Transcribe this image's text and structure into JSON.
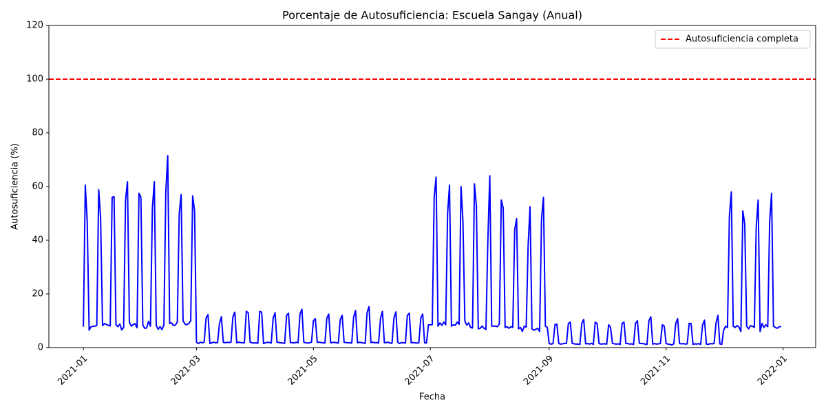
{
  "chart_data": {
    "type": "line",
    "title": "Porcentaje de Autosuficiencia: Escuela Sangay (Anual)",
    "xlabel": "Fecha",
    "ylabel": "Autosuficiencia (%)",
    "xlim": [
      "2020-12-14",
      "2022-01-18"
    ],
    "xticks": [
      {
        "value": "2021-01-01",
        "label": "2021-01"
      },
      {
        "value": "2021-03-01",
        "label": "2021-03"
      },
      {
        "value": "2021-05-01",
        "label": "2021-05"
      },
      {
        "value": "2021-07-01",
        "label": "2021-07"
      },
      {
        "value": "2021-09-01",
        "label": "2021-09"
      },
      {
        "value": "2021-11-01",
        "label": "2021-11"
      },
      {
        "value": "2022-01-01",
        "label": "2022-01"
      }
    ],
    "ylim": [
      0,
      120
    ],
    "yticks": [
      0,
      20,
      40,
      60,
      80,
      100,
      120
    ],
    "legend": "upper right",
    "hlines": [
      {
        "y": 100,
        "name": "Autosuficiencia completa",
        "color": "#ff0000"
      }
    ],
    "x": [
      "2021-01-01",
      "2021-01-02",
      "2021-01-03",
      "2021-01-04",
      "2021-01-05",
      "2021-01-06",
      "2021-01-07",
      "2021-01-08",
      "2021-01-09",
      "2021-01-10",
      "2021-01-11",
      "2021-01-12",
      "2021-01-13",
      "2021-01-14",
      "2021-01-15",
      "2021-01-16",
      "2021-01-17",
      "2021-01-18",
      "2021-01-19",
      "2021-01-20",
      "2021-01-21",
      "2021-01-22",
      "2021-01-23",
      "2021-01-24",
      "2021-01-25",
      "2021-01-26",
      "2021-01-27",
      "2021-01-28",
      "2021-01-29",
      "2021-01-30",
      "2021-01-31",
      "2021-02-01",
      "2021-02-02",
      "2021-02-03",
      "2021-02-04",
      "2021-02-05",
      "2021-02-06",
      "2021-02-07",
      "2021-02-08",
      "2021-02-09",
      "2021-02-10",
      "2021-02-11",
      "2021-02-12",
      "2021-02-13",
      "2021-02-14",
      "2021-02-15",
      "2021-02-16",
      "2021-02-17",
      "2021-02-18",
      "2021-02-19",
      "2021-02-20",
      "2021-02-21",
      "2021-02-22",
      "2021-02-23",
      "2021-02-24",
      "2021-02-25",
      "2021-02-26",
      "2021-02-27",
      "2021-02-28",
      "2021-03-01",
      "2021-03-02",
      "2021-03-03",
      "2021-03-04",
      "2021-03-05",
      "2021-03-06",
      "2021-03-07",
      "2021-03-08",
      "2021-03-09",
      "2021-03-10",
      "2021-03-11",
      "2021-03-12",
      "2021-03-13",
      "2021-03-14",
      "2021-03-15",
      "2021-03-16",
      "2021-03-17",
      "2021-03-18",
      "2021-03-19",
      "2021-03-20",
      "2021-03-21",
      "2021-03-22",
      "2021-03-23",
      "2021-03-24",
      "2021-03-25",
      "2021-03-26",
      "2021-03-27",
      "2021-03-28",
      "2021-03-29",
      "2021-03-30",
      "2021-03-31",
      "2021-04-01",
      "2021-04-02",
      "2021-04-03",
      "2021-04-04",
      "2021-04-05",
      "2021-04-06",
      "2021-04-07",
      "2021-04-08",
      "2021-04-09",
      "2021-04-10",
      "2021-04-11",
      "2021-04-12",
      "2021-04-13",
      "2021-04-14",
      "2021-04-15",
      "2021-04-16",
      "2021-04-17",
      "2021-04-18",
      "2021-04-19",
      "2021-04-20",
      "2021-04-21",
      "2021-04-22",
      "2021-04-23",
      "2021-04-24",
      "2021-04-25",
      "2021-04-26",
      "2021-04-27",
      "2021-04-28",
      "2021-04-29",
      "2021-04-30",
      "2021-05-01",
      "2021-05-02",
      "2021-05-03",
      "2021-05-04",
      "2021-05-05",
      "2021-05-06",
      "2021-05-07",
      "2021-05-08",
      "2021-05-09",
      "2021-05-10",
      "2021-05-11",
      "2021-05-12",
      "2021-05-13",
      "2021-05-14",
      "2021-05-15",
      "2021-05-16",
      "2021-05-17",
      "2021-05-18",
      "2021-05-19",
      "2021-05-20",
      "2021-05-21",
      "2021-05-22",
      "2021-05-23",
      "2021-05-24",
      "2021-05-25",
      "2021-05-26",
      "2021-05-27",
      "2021-05-28",
      "2021-05-29",
      "2021-05-30",
      "2021-05-31",
      "2021-06-01",
      "2021-06-02",
      "2021-06-03",
      "2021-06-04",
      "2021-06-05",
      "2021-06-06",
      "2021-06-07",
      "2021-06-08",
      "2021-06-09",
      "2021-06-10",
      "2021-06-11",
      "2021-06-12",
      "2021-06-13",
      "2021-06-14",
      "2021-06-15",
      "2021-06-16",
      "2021-06-17",
      "2021-06-18",
      "2021-06-19",
      "2021-06-20",
      "2021-06-21",
      "2021-06-22",
      "2021-06-23",
      "2021-06-24",
      "2021-06-25",
      "2021-06-26",
      "2021-06-27",
      "2021-06-28",
      "2021-06-29",
      "2021-06-30",
      "2021-07-01",
      "2021-07-02",
      "2021-07-03",
      "2021-07-04",
      "2021-07-05",
      "2021-07-06",
      "2021-07-07",
      "2021-07-08",
      "2021-07-09",
      "2021-07-10",
      "2021-07-11",
      "2021-07-12",
      "2021-07-13",
      "2021-07-14",
      "2021-07-15",
      "2021-07-16",
      "2021-07-17",
      "2021-07-18",
      "2021-07-19",
      "2021-07-20",
      "2021-07-21",
      "2021-07-22",
      "2021-07-23",
      "2021-07-24",
      "2021-07-25",
      "2021-07-26",
      "2021-07-27",
      "2021-07-28",
      "2021-07-29",
      "2021-07-30",
      "2021-07-31",
      "2021-08-01",
      "2021-08-02",
      "2021-08-03",
      "2021-08-04",
      "2021-08-05",
      "2021-08-06",
      "2021-08-07",
      "2021-08-08",
      "2021-08-09",
      "2021-08-10",
      "2021-08-11",
      "2021-08-12",
      "2021-08-13",
      "2021-08-14",
      "2021-08-15",
      "2021-08-16",
      "2021-08-17",
      "2021-08-18",
      "2021-08-19",
      "2021-08-20",
      "2021-08-21",
      "2021-08-22",
      "2021-08-23",
      "2021-08-24",
      "2021-08-25",
      "2021-08-26",
      "2021-08-27",
      "2021-08-28",
      "2021-08-29",
      "2021-08-30",
      "2021-08-31",
      "2021-09-01",
      "2021-09-02",
      "2021-09-03",
      "2021-09-04",
      "2021-09-05",
      "2021-09-06",
      "2021-09-07",
      "2021-09-08",
      "2021-09-09",
      "2021-09-10",
      "2021-09-11",
      "2021-09-12",
      "2021-09-13",
      "2021-09-14",
      "2021-09-15",
      "2021-09-16",
      "2021-09-17",
      "2021-09-18",
      "2021-09-19",
      "2021-09-20",
      "2021-09-21",
      "2021-09-22",
      "2021-09-23",
      "2021-09-24",
      "2021-09-25",
      "2021-09-26",
      "2021-09-27",
      "2021-09-28",
      "2021-09-29",
      "2021-09-30",
      "2021-10-01",
      "2021-10-02",
      "2021-10-03",
      "2021-10-04",
      "2021-10-05",
      "2021-10-06",
      "2021-10-07",
      "2021-10-08",
      "2021-10-09",
      "2021-10-10",
      "2021-10-11",
      "2021-10-12",
      "2021-10-13",
      "2021-10-14",
      "2021-10-15",
      "2021-10-16",
      "2021-10-17",
      "2021-10-18",
      "2021-10-19",
      "2021-10-20",
      "2021-10-21",
      "2021-10-22",
      "2021-10-23",
      "2021-10-24",
      "2021-10-25",
      "2021-10-26",
      "2021-10-27",
      "2021-10-28",
      "2021-10-29",
      "2021-10-30",
      "2021-10-31",
      "2021-11-01",
      "2021-11-02",
      "2021-11-03",
      "2021-11-04",
      "2021-11-05",
      "2021-11-06",
      "2021-11-07",
      "2021-11-08",
      "2021-11-09",
      "2021-11-10",
      "2021-11-11",
      "2021-11-12",
      "2021-11-13",
      "2021-11-14",
      "2021-11-15",
      "2021-11-16",
      "2021-11-17",
      "2021-11-18",
      "2021-11-19",
      "2021-11-20",
      "2021-11-21",
      "2021-11-22",
      "2021-11-23",
      "2021-11-24",
      "2021-11-25",
      "2021-11-26",
      "2021-11-27",
      "2021-11-28",
      "2021-11-29",
      "2021-11-30",
      "2021-12-01",
      "2021-12-02",
      "2021-12-03",
      "2021-12-04",
      "2021-12-05",
      "2021-12-06",
      "2021-12-07",
      "2021-12-08",
      "2021-12-09",
      "2021-12-10",
      "2021-12-11",
      "2021-12-12",
      "2021-12-13",
      "2021-12-14",
      "2021-12-15",
      "2021-12-16",
      "2021-12-17",
      "2021-12-18",
      "2021-12-19",
      "2021-12-20",
      "2021-12-21",
      "2021-12-22",
      "2021-12-23",
      "2021-12-24",
      "2021-12-25",
      "2021-12-26",
      "2021-12-27",
      "2021-12-28",
      "2021-12-29",
      "2021-12-30",
      "2021-12-31"
    ],
    "series": [
      {
        "color": "#0000ff",
        "values": [
          7.8,
          60.5,
          47,
          6.5,
          7.8,
          7.9,
          8,
          8.2,
          58.8,
          48,
          8.2,
          9,
          8.6,
          8.3,
          8.1,
          56,
          56.2,
          8.5,
          7.8,
          8.8,
          6.6,
          7.5,
          55,
          61.8,
          9.5,
          8,
          8.6,
          8.9,
          7.4,
          57.5,
          56,
          8.5,
          7.2,
          7.3,
          9.8,
          8,
          52,
          61.8,
          8.3,
          6.8,
          7.8,
          6.7,
          8.5,
          58,
          71.5,
          9,
          9.2,
          8.2,
          8.4,
          9.5,
          50,
          57,
          10,
          8.8,
          8.5,
          9,
          10,
          56.5,
          51,
          2,
          1.5,
          2,
          1.8,
          2,
          11,
          12.3,
          1.5,
          1.8,
          2,
          1.8,
          1.9,
          9,
          11.5,
          2,
          1.8,
          2,
          1.9,
          2,
          11.5,
          13.2,
          1.8,
          2,
          1.9,
          1.8,
          1.8,
          13.5,
          13,
          2,
          1.8,
          1.7,
          1.8,
          1.6,
          13.5,
          13.2,
          1.5,
          1.8,
          2,
          1.9,
          1.7,
          11,
          13,
          2,
          1.9,
          1.8,
          1.7,
          1.6,
          12,
          12.8,
          1.8,
          1.9,
          1.7,
          2,
          1.8,
          12.5,
          14.3,
          2,
          1.8,
          1.7,
          1.8,
          2,
          10,
          10.8,
          2,
          2,
          1.9,
          1.8,
          1.7,
          11,
          12.5,
          1.8,
          1.9,
          2,
          1.8,
          1.7,
          10.5,
          12,
          2,
          1.9,
          1.8,
          1.8,
          1.7,
          11.5,
          13.8,
          1.8,
          2,
          1.9,
          1.7,
          1.6,
          13,
          15.3,
          1.9,
          2,
          1.8,
          1.9,
          1.7,
          11,
          13.5,
          1.8,
          1.9,
          2,
          1.7,
          1.6,
          11,
          13.3,
          2,
          1.5,
          1.9,
          1.8,
          1.7,
          12,
          12.8,
          1.8,
          1.9,
          1.8,
          1.7,
          1.8,
          11,
          12.5,
          1.8,
          1.7,
          8.5,
          8.5,
          8.6,
          56,
          63.5,
          8,
          9.2,
          8.3,
          9.5,
          8.5,
          50,
          60.5,
          8,
          8.5,
          8.3,
          9.5,
          8.7,
          60,
          47,
          9.8,
          8.4,
          9.2,
          7.5,
          7.3,
          61,
          53,
          7,
          7.2,
          8,
          7.2,
          6.8,
          40,
          64,
          8,
          8,
          8,
          7.8,
          8.8,
          55,
          52,
          7.5,
          7.8,
          7.2,
          7.8,
          7.5,
          44,
          48,
          7,
          7.5,
          6,
          8,
          7.6,
          38,
          52.5,
          7,
          6.5,
          6.8,
          7.2,
          6,
          48,
          56,
          8,
          7.5,
          1.5,
          1.3,
          1.5,
          8.5,
          8.8,
          1.5,
          1.3,
          1.4,
          1.6,
          1.5,
          9,
          9.5,
          1.6,
          1.4,
          1.3,
          1.3,
          1.2,
          9,
          10.5,
          1.4,
          1.5,
          1.3,
          1.6,
          1.2,
          9.5,
          9,
          1.5,
          1.3,
          1.4,
          1.4,
          1.3,
          8.5,
          7.5,
          1.6,
          1.4,
          1.3,
          1.4,
          1.2,
          9,
          9.5,
          1.5,
          1.5,
          1.3,
          1.4,
          1.2,
          9,
          10,
          1.6,
          1.5,
          1.5,
          1.3,
          1.2,
          10,
          11.5,
          1.3,
          1.5,
          1.3,
          1.4,
          1.5,
          8.5,
          8,
          1.5,
          1.3,
          1.2,
          1,
          1.4,
          9,
          10.8,
          1.5,
          1.4,
          1.5,
          1.3,
          1.4,
          9,
          9,
          1.2,
          1.4,
          1.3,
          1.5,
          1.2,
          8.5,
          10.2,
          1.3,
          1.2,
          1.5,
          1.4,
          1.5,
          9,
          12,
          1.4,
          1.2,
          6.5,
          8,
          7.5,
          49,
          58,
          8,
          7.5,
          8.2,
          7.6,
          6,
          51,
          46,
          8,
          7,
          8.2,
          8,
          7.5,
          45,
          55,
          6,
          9,
          7.5,
          8.5,
          7.8,
          47,
          57.5,
          8,
          7.5,
          7.2,
          7.8,
          7.8
        ]
      }
    ]
  }
}
